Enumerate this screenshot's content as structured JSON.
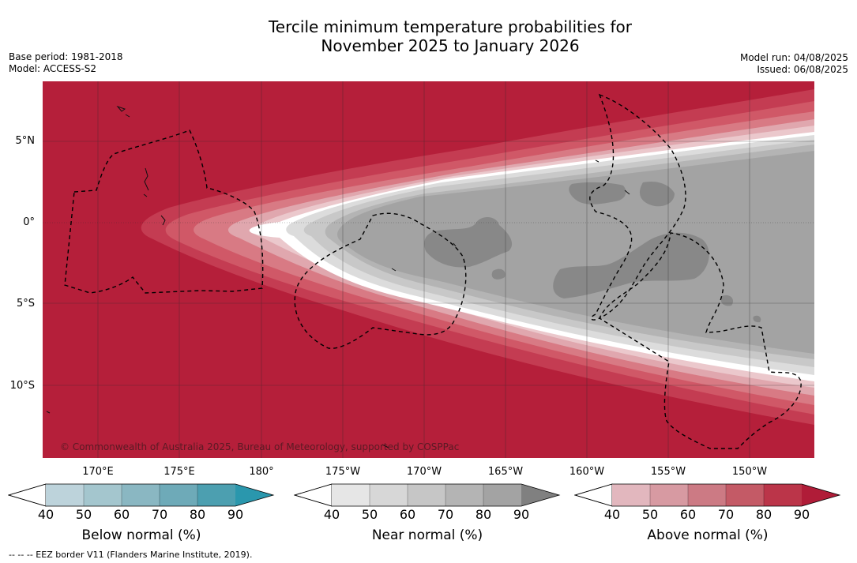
{
  "header": {
    "title_line1": "Tercile minimum temperature probabilities for",
    "title_line2": "November 2025 to January 2026",
    "base_period": "Base period: 1981-2018",
    "model": "Model: ACCESS-S2",
    "model_run": "Model run: 04/08/2025",
    "issued": "Issued: 06/08/2025"
  },
  "map": {
    "copyright": "© Commonwealth of Australia 2025, Bureau of Meteorology, supported by COSPPac",
    "lat_labels": [
      "5°N",
      "0°",
      "5°S",
      "10°S"
    ],
    "lon_labels": [
      "170°E",
      "175°E",
      "180°",
      "175°W",
      "170°W",
      "165°W",
      "160°W",
      "155°W",
      "150°W"
    ],
    "colors": {
      "above_90": "#b51f3a",
      "above_80": "#c43c52",
      "above_70": "#d05867",
      "above_60": "#d87a84",
      "above_50": "#e0a7ae",
      "above_40": "#ebc8cc",
      "near_50": "#dcdcdc",
      "near_60": "#c8c8c8",
      "near_70": "#b4b4b4",
      "near_80": "#a3a3a3",
      "near_90": "#888888"
    }
  },
  "legends": {
    "ticks": [
      "40",
      "50",
      "60",
      "70",
      "80",
      "90"
    ],
    "below": {
      "title": "Below normal (%)",
      "colors": [
        "#bdd3db",
        "#a4c6ce",
        "#8ab7c2",
        "#6eaab8",
        "#4c9fb0",
        "#2a97ad"
      ]
    },
    "near": {
      "title": "Near normal (%)",
      "colors": [
        "#e6e6e6",
        "#d7d7d7",
        "#c6c6c6",
        "#b4b4b4",
        "#a3a3a3",
        "#808080"
      ]
    },
    "above": {
      "title": "Above normal (%)",
      "colors": [
        "#e2b7be",
        "#d79aa2",
        "#cc7a84",
        "#c45a66",
        "#bb3549",
        "#b01c38"
      ]
    }
  },
  "footnote": "-- -- -- EEZ border V11 (Flanders Marine Institute, 2019)."
}
